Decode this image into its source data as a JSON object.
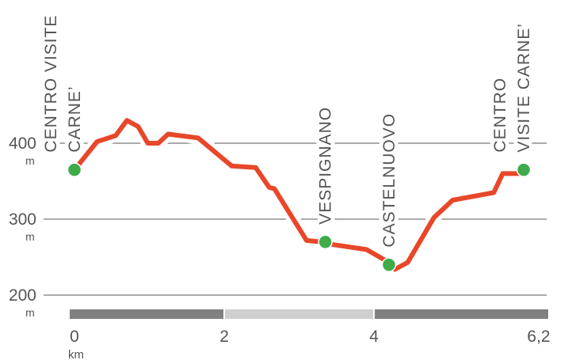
{
  "chart_data": {
    "type": "line",
    "x_unit": "km",
    "y_unit": "m",
    "xlim": [
      0,
      6.2
    ],
    "ylim": [
      200,
      400
    ],
    "y_ticks": [
      {
        "value": 400,
        "label": "400",
        "unit": "m"
      },
      {
        "value": 300,
        "label": "300",
        "unit": "m"
      },
      {
        "value": 200,
        "label": "200",
        "unit": "m"
      }
    ],
    "x_ticks": [
      {
        "value": 0,
        "label": "0",
        "unit": "km"
      },
      {
        "value": 2,
        "label": "2"
      },
      {
        "value": 4,
        "label": "4"
      },
      {
        "value": 6.2,
        "label": "6,2"
      }
    ],
    "series": [
      {
        "color": "#e8472a",
        "x": [
          0,
          0.3,
          0.55,
          0.7,
          0.85,
          0.98,
          1.12,
          1.25,
          1.65,
          2.1,
          2.42,
          2.6,
          2.67,
          3.1,
          3.3,
          3.35,
          3.9,
          4.2,
          4.28,
          4.45,
          4.8,
          5.05,
          5.6,
          5.72,
          5.95
        ],
        "y": [
          365,
          402,
          410,
          430,
          422,
          400,
          400,
          412,
          407,
          370,
          368,
          342,
          340,
          272,
          270,
          268,
          260,
          243,
          234,
          243,
          302,
          325,
          335,
          360,
          360
        ]
      }
    ],
    "waypoints": [
      {
        "x": 0,
        "y": 365,
        "label_lines": [
          "CENTRO VISITE",
          "CARNE’"
        ]
      },
      {
        "x": 3.35,
        "y": 270,
        "label_lines": [
          "VESPIGNANO"
        ]
      },
      {
        "x": 4.2,
        "y": 240,
        "label_lines": [
          "CASTELNUOVO"
        ]
      },
      {
        "x": 6.0,
        "y": 365,
        "label_lines": [
          "CENTRO",
          "VISITE CARNE’"
        ]
      }
    ],
    "marker_color": "#3fab49",
    "scale_bar": [
      {
        "from": 0,
        "to": 2,
        "color": "#808080"
      },
      {
        "from": 2,
        "to": 4,
        "color": "#cfcfcf"
      },
      {
        "from": 4,
        "to": 6.2,
        "color": "#808080"
      }
    ],
    "grid": true
  }
}
